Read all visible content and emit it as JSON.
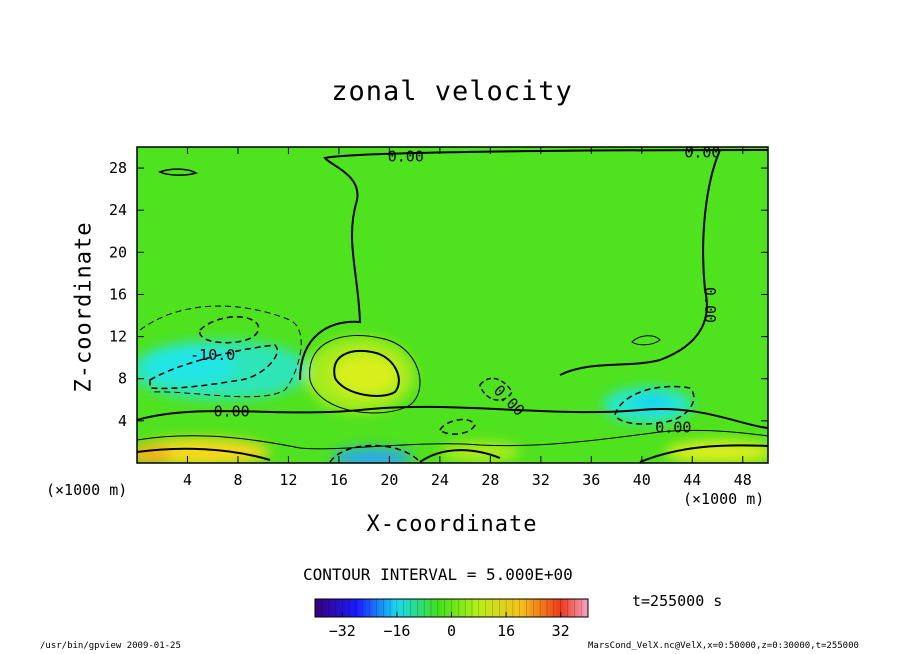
{
  "chart_data": {
    "type": "heatmap",
    "title": "zonal velocity",
    "xlabel": "X-coordinate",
    "ylabel": "Z-coordinate",
    "x_unit_label": "(×1000 m)",
    "y_unit_label": "(×1000 m)",
    "xlim": [
      0,
      50
    ],
    "ylim": [
      0,
      30
    ],
    "x_ticks": [
      4,
      8,
      12,
      16,
      20,
      24,
      28,
      32,
      36,
      40,
      44,
      48
    ],
    "y_ticks": [
      4,
      8,
      12,
      16,
      20,
      24,
      28
    ],
    "contour_interval_text": "CONTOUR INTERVAL = 5.000E+00",
    "contour_labels": [
      "0.00",
      "0.00",
      "-10.0",
      "0.00",
      "0.00",
      "0.00",
      "0.00"
    ],
    "colorbar": {
      "min": -40,
      "max": 40,
      "ticks": [
        -32,
        -16,
        0,
        16,
        32
      ]
    },
    "time_text": "t=255000 s",
    "features": [
      {
        "kind": "maximum",
        "x": 18,
        "z": 8.5,
        "value": 10
      },
      {
        "kind": "minimum",
        "x": 7,
        "z": 8,
        "value": -12
      },
      {
        "kind": "minimum",
        "x": 41,
        "z": 5.8,
        "value": -10
      },
      {
        "kind": "maximum",
        "x": 7,
        "z": 1,
        "value": 15
      },
      {
        "kind": "minimum",
        "x": 18,
        "z": 0.5,
        "value": -15
      },
      {
        "kind": "maximum",
        "x": 47,
        "z": 1,
        "value": 12
      }
    ]
  },
  "footer": {
    "left": "/usr/bin/gpview  2009-01-25",
    "right": "MarsCond_VelX.nc@VelX,x=0:50000,z=0:30000,t=255000"
  },
  "colors": {
    "background_field": "#4de31c",
    "positive": "#f2ef1e",
    "negative": "#27e9e6"
  }
}
